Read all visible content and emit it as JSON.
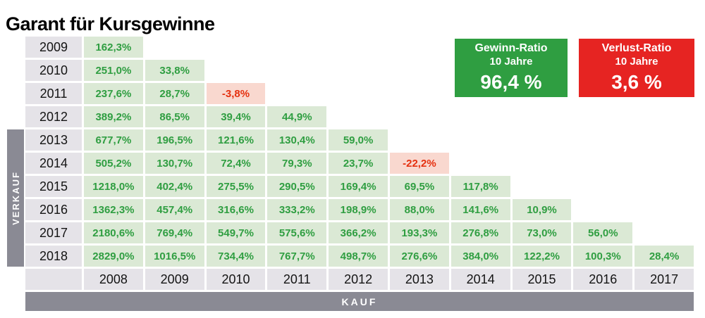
{
  "page_title": "Garant für Kursgewinne",
  "axes": {
    "vertical": "VERKAUF",
    "horizontal": "KAUF"
  },
  "ratio_boxes": [
    {
      "label": "Gewinn-Ratio",
      "sublabel": "10 Jahre",
      "value": "96,4 %"
    },
    {
      "label": "Verlust-Ratio",
      "sublabel": "10 Jahre",
      "value": "3,6 %"
    }
  ],
  "colors": {
    "positive_cell_bg": "#dbe9d5",
    "positive_text": "#2f9e41",
    "negative_cell_bg": "#f9d8cf",
    "negative_text": "#e5300f",
    "header_cell_bg": "#e5e3e8",
    "axis_bar_gray": "#8a8a94",
    "gewinn_box": "#2f9e41",
    "verlust_box": "#e62422"
  },
  "chart_data": {
    "type": "heatmap",
    "title": "Garant für Kursgewinne",
    "xlabel": "KAUF",
    "ylabel": "VERKAUF",
    "legend": [
      {
        "name": "Gewinn-Ratio 10 Jahre",
        "value": "96,4 %"
      },
      {
        "name": "Verlust-Ratio 10 Jahre",
        "value": "3,6 %"
      }
    ],
    "columns": [
      "2008",
      "2009",
      "2010",
      "2011",
      "2012",
      "2013",
      "2014",
      "2015",
      "2016",
      "2017"
    ],
    "rows": [
      {
        "year": "2009",
        "values": [
          "162,3%"
        ]
      },
      {
        "year": "2010",
        "values": [
          "251,0%",
          "33,8%"
        ]
      },
      {
        "year": "2011",
        "values": [
          "237,6%",
          "28,7%",
          "-3,8%"
        ]
      },
      {
        "year": "2012",
        "values": [
          "389,2%",
          "86,5%",
          "39,4%",
          "44,9%"
        ]
      },
      {
        "year": "2013",
        "values": [
          "677,7%",
          "196,5%",
          "121,6%",
          "130,4%",
          "59,0%"
        ]
      },
      {
        "year": "2014",
        "values": [
          "505,2%",
          "130,7%",
          "72,4%",
          "79,3%",
          "23,7%",
          "-22,2%"
        ]
      },
      {
        "year": "2015",
        "values": [
          "1218,0%",
          "402,4%",
          "275,5%",
          "290,5%",
          "169,4%",
          "69,5%",
          "117,8%"
        ]
      },
      {
        "year": "2016",
        "values": [
          "1362,3%",
          "457,4%",
          "316,6%",
          "333,2%",
          "198,9%",
          "88,0%",
          "141,6%",
          "10,9%"
        ]
      },
      {
        "year": "2017",
        "values": [
          "2180,6%",
          "769,4%",
          "549,7%",
          "575,6%",
          "366,2%",
          "193,3%",
          "276,8%",
          "73,0%",
          "56,0%"
        ]
      },
      {
        "year": "2018",
        "values": [
          "2829,0%",
          "1016,5%",
          "734,4%",
          "767,7%",
          "498,7%",
          "276,6%",
          "384,0%",
          "122,2%",
          "100,3%",
          "28,4%"
        ]
      }
    ]
  }
}
